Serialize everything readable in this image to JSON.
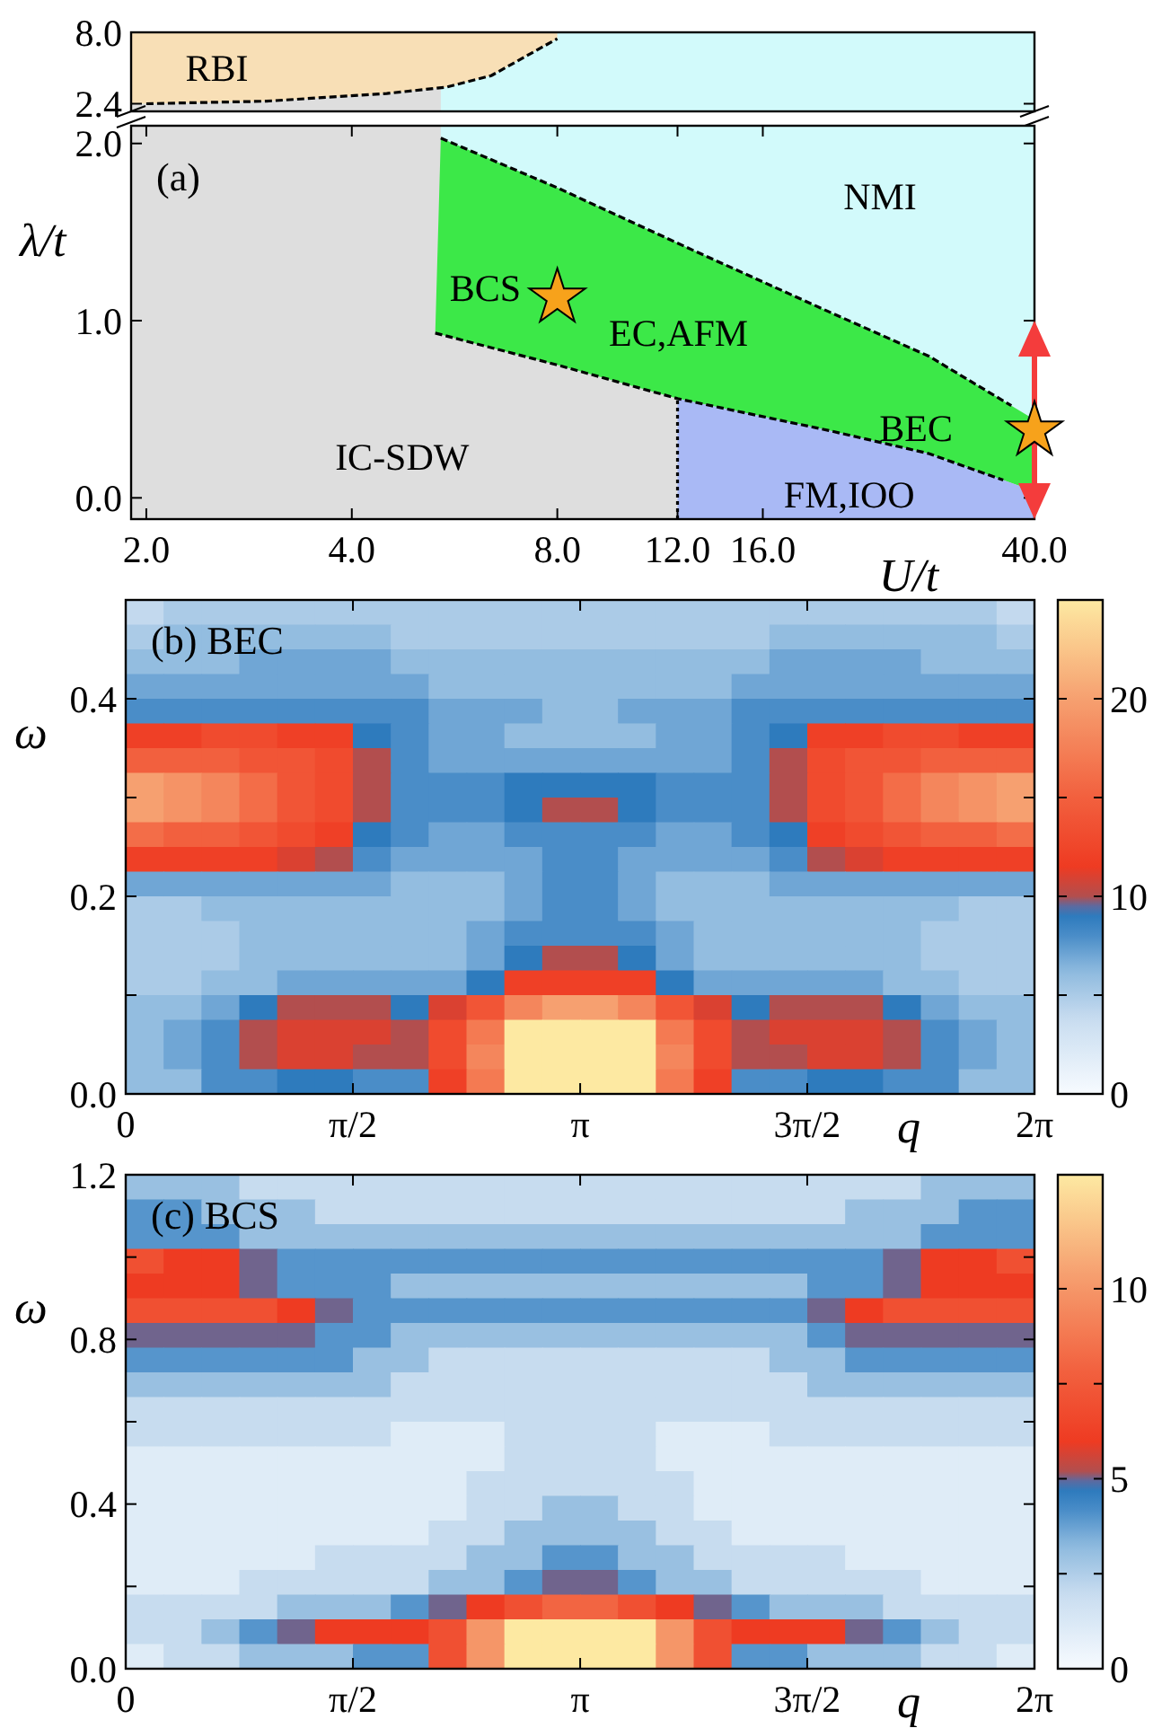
{
  "chart_data": [
    {
      "type": "line",
      "log": "x",
      "xlim": [
        1.9,
        40
      ],
      "tick_labels": "y",
      "ylim": [
        1.8,
        8
      ],
      "yticks": [
        {
          "value": 2.4,
          "label": "2.4"
        },
        {
          "value": 8,
          "label": "8.0"
        }
      ],
      "series": [
        {
          "type": "line",
          "color": "#000000",
          "line_style": "dashed",
          "x": [
            2.0,
            3.0,
            4.5,
            5.5,
            6.4,
            8.0
          ],
          "values": [
            2.4,
            2.6,
            3.2,
            3.7,
            4.6,
            7.5
          ]
        }
      ],
      "annotations": [
        "RBI"
      ]
    },
    {
      "type": "line",
      "title": "(a)",
      "xlabel": "U/t",
      "ylabel": "λ/t",
      "log": "x",
      "xlim": [
        1.9,
        40
      ],
      "xticks": [
        {
          "value": 2,
          "label": "2.0"
        },
        {
          "value": 4,
          "label": "4.0"
        },
        {
          "value": 8,
          "label": "8.0"
        },
        {
          "value": 12,
          "label": "12.0"
        },
        {
          "value": 16,
          "label": "16.0"
        },
        {
          "value": 40,
          "label": "40.0"
        }
      ],
      "ylim": [
        -0.12,
        2.1
      ],
      "yticks": [
        {
          "value": 0,
          "label": "0.0"
        },
        {
          "value": 1,
          "label": "1.0"
        },
        {
          "value": 2,
          "label": "2.0"
        }
      ],
      "series": [
        {
          "type": "line",
          "color": "#000000",
          "line_style": "dashed",
          "x": [
            5.4,
            8,
            12.6,
            20,
            28,
            37
          ],
          "values": [
            2.03,
            1.75,
            1.4,
            1.05,
            0.8,
            0.52
          ]
        },
        {
          "type": "line",
          "color": "#000000",
          "line_style": "dashed",
          "x": [
            5.3,
            8,
            12,
            20,
            28,
            36
          ],
          "values": [
            0.93,
            0.75,
            0.56,
            0.38,
            0.25,
            0.1
          ]
        },
        {
          "type": "line",
          "color": "#000000",
          "line_style": "dotted",
          "x": [
            12,
            12
          ],
          "values": [
            -0.12,
            0.56
          ]
        },
        {
          "type": "scatter",
          "color": "#f7a21b",
          "marker": "star",
          "x": [
            8,
            40
          ],
          "values": [
            1.13,
            0.38
          ]
        }
      ],
      "annotations": [
        "NMI",
        "BCS",
        "EC,AFM",
        "BEC",
        "IC-SDW",
        "FM,IOO"
      ]
    },
    {
      "type": "heatmap",
      "title": "(b) BEC",
      "xlabel": "q",
      "ylabel": "ω",
      "xlim": [
        0,
        6.283
      ],
      "xticks": [
        {
          "value": 0,
          "label": "0"
        },
        {
          "value": 1.571,
          "label": "π/2"
        },
        {
          "value": 3.142,
          "label": "π"
        },
        {
          "value": 4.712,
          "label": "3π/2"
        },
        {
          "value": 6.283,
          "label": "2π"
        }
      ],
      "ylim": [
        0,
        0.5
      ],
      "yticks": [
        {
          "value": 0,
          "label": "0.0"
        },
        {
          "value": 0.1,
          "label": null
        },
        {
          "value": 0.2,
          "label": "0.2"
        },
        {
          "value": 0.3,
          "label": null
        },
        {
          "value": 0.4,
          "label": "0.4"
        }
      ],
      "clim": [
        0,
        25
      ],
      "cticks": [
        0,
        {
          "value": 5,
          "label": null
        },
        10,
        {
          "value": 15,
          "label": null
        },
        20
      ],
      "cells": [
        [
          4,
          5,
          5,
          5,
          5,
          5,
          5,
          5,
          5,
          5,
          5,
          5,
          5,
          5,
          5,
          5,
          5,
          5,
          5,
          5,
          5,
          5,
          5,
          4
        ],
        [
          5,
          6,
          6,
          6,
          6,
          6,
          6,
          5,
          5,
          5,
          5,
          5,
          5,
          5,
          5,
          5,
          5,
          6,
          6,
          6,
          6,
          6,
          6,
          5
        ],
        [
          6,
          6,
          6,
          7,
          7,
          7,
          7,
          6,
          6,
          6,
          6,
          6,
          6,
          6,
          6,
          6,
          6,
          7,
          7,
          7,
          7,
          6,
          6,
          6
        ],
        [
          7,
          7,
          7,
          7,
          7,
          7,
          7,
          7,
          6,
          6,
          6,
          6,
          6,
          6,
          6,
          6,
          7,
          7,
          7,
          7,
          7,
          7,
          7,
          7
        ],
        [
          8,
          8,
          8,
          8,
          8,
          8,
          8,
          8,
          7,
          7,
          7,
          6,
          6,
          7,
          7,
          7,
          8,
          8,
          8,
          8,
          8,
          8,
          8,
          8
        ],
        [
          12,
          12,
          13,
          13,
          12,
          12,
          9,
          8,
          7,
          7,
          6,
          6,
          6,
          6,
          7,
          7,
          8,
          9,
          12,
          12,
          13,
          13,
          12,
          12
        ],
        [
          15,
          15,
          15,
          14,
          14,
          13,
          10,
          8,
          7,
          7,
          7,
          7,
          7,
          7,
          7,
          7,
          8,
          10,
          13,
          14,
          14,
          15,
          15,
          15
        ],
        [
          20,
          19,
          18,
          16,
          14,
          13,
          10,
          8,
          8,
          8,
          9,
          9,
          9,
          9,
          8,
          8,
          8,
          10,
          13,
          14,
          16,
          18,
          19,
          20
        ],
        [
          20,
          19,
          18,
          16,
          14,
          13,
          10,
          8,
          8,
          8,
          9,
          10,
          10,
          9,
          8,
          8,
          8,
          10,
          13,
          14,
          16,
          18,
          19,
          20
        ],
        [
          16,
          15,
          15,
          14,
          13,
          12,
          9,
          8,
          7,
          7,
          8,
          8,
          8,
          8,
          7,
          7,
          8,
          9,
          12,
          13,
          14,
          15,
          15,
          16
        ],
        [
          12,
          12,
          12,
          12,
          11,
          10,
          8,
          7,
          7,
          7,
          7,
          8,
          8,
          7,
          7,
          7,
          7,
          8,
          10,
          11,
          12,
          12,
          12,
          12
        ],
        [
          7,
          7,
          7,
          7,
          7,
          7,
          7,
          6,
          6,
          6,
          7,
          8,
          8,
          7,
          6,
          6,
          6,
          7,
          7,
          7,
          7,
          7,
          7,
          7
        ],
        [
          5,
          5,
          6,
          6,
          6,
          6,
          6,
          6,
          6,
          6,
          7,
          8,
          8,
          7,
          6,
          6,
          6,
          6,
          6,
          6,
          6,
          6,
          5,
          5
        ],
        [
          5,
          5,
          5,
          6,
          6,
          6,
          6,
          6,
          6,
          7,
          8,
          8,
          8,
          8,
          7,
          6,
          6,
          6,
          6,
          6,
          6,
          5,
          5,
          5
        ],
        [
          5,
          5,
          5,
          6,
          6,
          6,
          6,
          6,
          6,
          7,
          9,
          10,
          10,
          9,
          7,
          6,
          6,
          6,
          6,
          6,
          6,
          5,
          5,
          5
        ],
        [
          5,
          5,
          6,
          6,
          7,
          7,
          7,
          7,
          7,
          9,
          12,
          12,
          12,
          12,
          9,
          7,
          7,
          7,
          7,
          7,
          6,
          6,
          5,
          5
        ],
        [
          6,
          6,
          7,
          9,
          10,
          10,
          10,
          9,
          11,
          14,
          18,
          20,
          20,
          18,
          14,
          11,
          9,
          10,
          10,
          10,
          9,
          7,
          6,
          6
        ],
        [
          6,
          7,
          8,
          10,
          11,
          11,
          11,
          10,
          13,
          17,
          25,
          25,
          25,
          25,
          17,
          13,
          10,
          11,
          11,
          11,
          10,
          8,
          7,
          6
        ],
        [
          6,
          7,
          8,
          10,
          11,
          11,
          10,
          10,
          13,
          18,
          25,
          25,
          25,
          25,
          18,
          13,
          10,
          10,
          11,
          11,
          10,
          8,
          7,
          6
        ],
        [
          6,
          6,
          8,
          8,
          9,
          9,
          8,
          8,
          12,
          17,
          25,
          25,
          25,
          25,
          17,
          12,
          8,
          8,
          9,
          9,
          8,
          8,
          6,
          6
        ]
      ]
    },
    {
      "type": "heatmap",
      "title": "(c) BCS",
      "xlabel": "q",
      "ylabel": "ω",
      "xlim": [
        0,
        6.283
      ],
      "xticks": [
        {
          "value": 0,
          "label": "0"
        },
        {
          "value": 1.571,
          "label": "π/2"
        },
        {
          "value": 3.142,
          "label": "π"
        },
        {
          "value": 4.712,
          "label": "3π/2"
        },
        {
          "value": 6.283,
          "label": "2π"
        }
      ],
      "ylim": [
        0,
        1.2
      ],
      "yticks": [
        {
          "value": 0,
          "label": "0.0"
        },
        {
          "value": 0.2,
          "label": null
        },
        {
          "value": 0.4,
          "label": "0.4"
        },
        {
          "value": 0.6,
          "label": null
        },
        {
          "value": 0.8,
          "label": "0.8"
        },
        {
          "value": 1.0,
          "label": null
        },
        {
          "value": 1.2,
          "label": "1.2"
        }
      ],
      "clim": [
        0,
        13
      ],
      "cticks": [
        0,
        {
          "value": 2.5,
          "label": null
        },
        5,
        {
          "value": 7.5,
          "label": null
        },
        10
      ],
      "cells": [
        [
          3,
          3,
          3,
          2,
          2,
          2,
          2,
          2,
          2,
          2,
          2,
          2,
          2,
          2,
          2,
          2,
          2,
          2,
          2,
          2,
          2,
          3,
          3,
          3
        ],
        [
          4,
          4,
          3,
          3,
          3,
          2,
          2,
          2,
          2,
          2,
          2,
          2,
          2,
          2,
          2,
          2,
          2,
          2,
          2,
          3,
          3,
          3,
          4,
          4
        ],
        [
          4,
          4,
          4,
          3,
          3,
          3,
          3,
          3,
          3,
          3,
          3,
          3,
          3,
          3,
          3,
          3,
          3,
          3,
          3,
          3,
          3,
          4,
          4,
          4
        ],
        [
          7,
          6,
          6,
          5,
          4,
          4,
          4,
          4,
          4,
          4,
          4,
          4,
          4,
          4,
          4,
          4,
          4,
          4,
          4,
          4,
          5,
          6,
          6,
          7
        ],
        [
          6,
          6,
          6,
          5,
          4,
          4,
          4,
          3,
          3,
          3,
          3,
          3,
          3,
          3,
          3,
          3,
          3,
          3,
          4,
          4,
          5,
          6,
          6,
          6
        ],
        [
          7,
          7,
          7,
          7,
          6,
          5,
          4,
          4,
          4,
          4,
          4,
          4,
          4,
          4,
          4,
          4,
          4,
          4,
          5,
          6,
          7,
          7,
          7,
          7
        ],
        [
          5,
          5,
          5,
          5,
          5,
          4,
          4,
          3,
          3,
          3,
          3,
          3,
          3,
          3,
          3,
          3,
          3,
          3,
          4,
          5,
          5,
          5,
          5,
          5
        ],
        [
          4,
          4,
          4,
          4,
          4,
          4,
          3,
          3,
          2,
          2,
          2,
          2,
          2,
          2,
          2,
          2,
          2,
          3,
          3,
          4,
          4,
          4,
          4,
          4
        ],
        [
          3,
          3,
          3,
          3,
          3,
          3,
          3,
          2,
          2,
          2,
          2,
          2,
          2,
          2,
          2,
          2,
          2,
          2,
          3,
          3,
          3,
          3,
          3,
          3
        ],
        [
          2,
          2,
          2,
          2,
          2,
          2,
          2,
          2,
          2,
          2,
          2,
          2,
          2,
          2,
          2,
          2,
          2,
          2,
          2,
          2,
          2,
          2,
          2,
          2
        ],
        [
          2,
          2,
          2,
          2,
          2,
          2,
          2,
          1,
          1,
          1,
          2,
          2,
          2,
          2,
          1,
          1,
          1,
          2,
          2,
          2,
          2,
          2,
          2,
          2
        ],
        [
          1,
          1,
          1,
          1,
          1,
          1,
          1,
          1,
          1,
          1,
          2,
          2,
          2,
          2,
          1,
          1,
          1,
          1,
          1,
          1,
          1,
          1,
          1,
          1
        ],
        [
          1,
          1,
          1,
          1,
          1,
          1,
          1,
          1,
          1,
          2,
          2,
          2,
          2,
          2,
          2,
          1,
          1,
          1,
          1,
          1,
          1,
          1,
          1,
          1
        ],
        [
          1,
          1,
          1,
          1,
          1,
          1,
          1,
          1,
          1,
          2,
          2,
          3,
          3,
          2,
          2,
          1,
          1,
          1,
          1,
          1,
          1,
          1,
          1,
          1
        ],
        [
          1,
          1,
          1,
          1,
          1,
          1,
          1,
          1,
          2,
          2,
          3,
          3,
          3,
          3,
          2,
          2,
          1,
          1,
          1,
          1,
          1,
          1,
          1,
          1
        ],
        [
          1,
          1,
          1,
          1,
          1,
          2,
          2,
          2,
          2,
          3,
          3,
          4,
          4,
          3,
          3,
          2,
          2,
          2,
          2,
          1,
          1,
          1,
          1,
          1
        ],
        [
          1,
          1,
          1,
          2,
          2,
          2,
          2,
          2,
          3,
          3,
          4,
          5,
          5,
          4,
          3,
          3,
          2,
          2,
          2,
          2,
          2,
          1,
          1,
          1
        ],
        [
          2,
          2,
          2,
          2,
          3,
          3,
          3,
          4,
          5,
          6,
          7,
          8,
          8,
          7,
          6,
          5,
          4,
          3,
          3,
          3,
          2,
          2,
          2,
          2
        ],
        [
          2,
          2,
          3,
          4,
          5,
          6,
          6,
          6,
          7,
          10,
          13,
          13,
          13,
          13,
          10,
          7,
          6,
          6,
          6,
          5,
          4,
          3,
          2,
          2
        ],
        [
          1,
          2,
          2,
          3,
          3,
          3,
          4,
          4,
          7,
          10,
          13,
          13,
          13,
          13,
          10,
          7,
          4,
          4,
          3,
          3,
          3,
          2,
          2,
          1
        ]
      ]
    }
  ]
}
